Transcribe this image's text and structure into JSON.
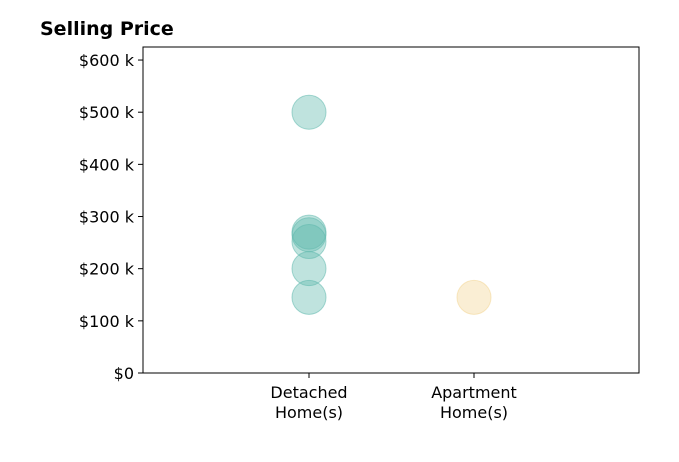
{
  "chart_data": {
    "type": "scatter",
    "title": "Selling Price",
    "xlabel": "",
    "ylabel": "",
    "categories": [
      "Detached\nHome(s)",
      "Apartment\nHome(s)"
    ],
    "y_ticks": [
      {
        "value": 0,
        "label": "$0"
      },
      {
        "value": 100000,
        "label": "$100 k"
      },
      {
        "value": 200000,
        "label": "$200 k"
      },
      {
        "value": 300000,
        "label": "$300 k"
      },
      {
        "value": 400000,
        "label": "$400 k"
      },
      {
        "value": 500000,
        "label": "$500 k"
      },
      {
        "value": 600000,
        "label": "$600 k"
      }
    ],
    "ylim": [
      0,
      625000
    ],
    "grid": false,
    "series": [
      {
        "category": "Detached\nHome(s)",
        "color": "#5fb8ad",
        "values": [
          500000,
          270000,
          265000,
          252000,
          200000,
          145000
        ]
      },
      {
        "category": "Apartment\nHome(s)",
        "color": "#f2d594",
        "values": [
          145000
        ]
      }
    ]
  }
}
